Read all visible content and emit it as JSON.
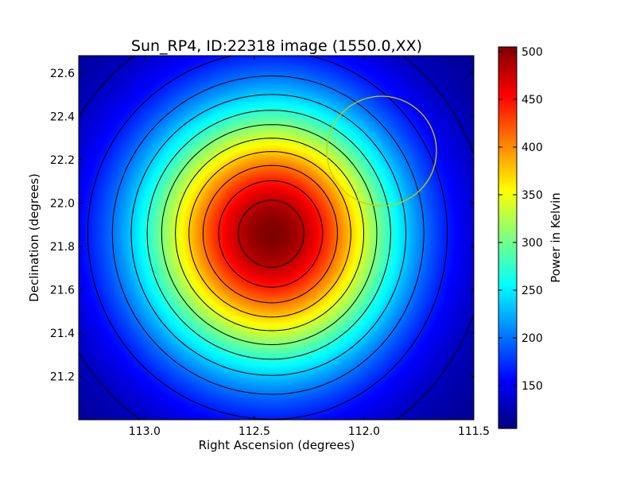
{
  "chart_data": {
    "type": "heatmap",
    "title": "Sun_RP4, ID:22318 image (1550.0,XX)",
    "xlabel": "Right Ascension (degrees)",
    "ylabel": "Declination (degrees)",
    "xlim": [
      113.3,
      111.5
    ],
    "ylim": [
      21.0,
      22.68
    ],
    "x_ticks": [
      "113.0",
      "112.5",
      "112.0",
      "111.5"
    ],
    "x_tick_values": [
      113.0,
      112.5,
      112.0,
      111.5
    ],
    "y_ticks": [
      "21.2",
      "21.4",
      "21.6",
      "21.8",
      "22.0",
      "22.2",
      "22.4",
      "22.6"
    ],
    "y_tick_values": [
      21.2,
      21.4,
      21.6,
      21.8,
      22.0,
      22.2,
      22.4,
      22.6
    ],
    "colormap": "jet",
    "colorbar": {
      "label": "Power in Kelvin",
      "range": [
        105,
        505
      ],
      "ticks": [
        "150",
        "200",
        "250",
        "300",
        "350",
        "400",
        "450",
        "500"
      ],
      "tick_values": [
        150,
        200,
        250,
        300,
        350,
        400,
        450,
        500
      ]
    },
    "peak": {
      "ra": 112.42,
      "dec": 21.86,
      "value": 505
    },
    "background_value": 110,
    "contour_levels": [
      130,
      165,
      200,
      235,
      270,
      305,
      340,
      375,
      410,
      445,
      480
    ],
    "marker_circle": {
      "ra": 111.92,
      "dec": 22.24,
      "radius_deg": 0.25,
      "color": "#cccc00"
    },
    "grid": false
  }
}
